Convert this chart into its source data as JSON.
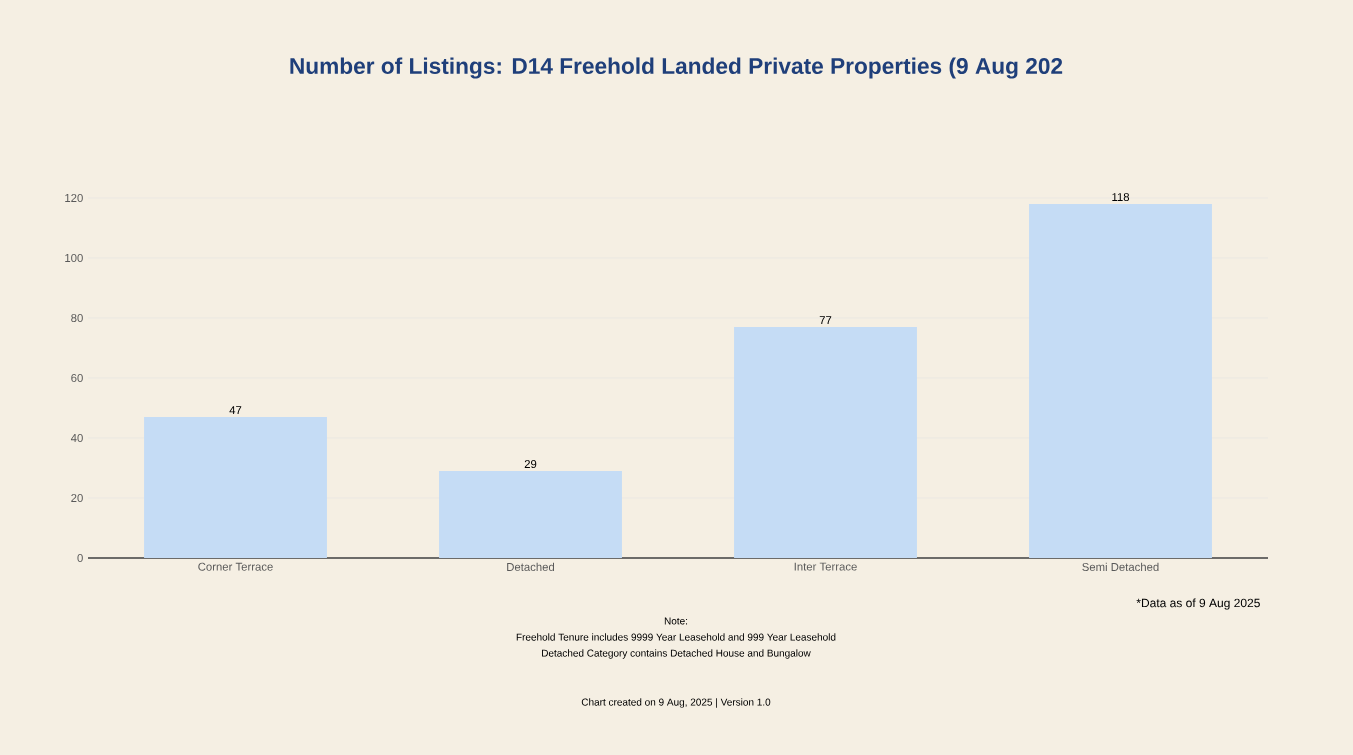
{
  "chart_data": {
    "type": "bar",
    "title": "Number of Listings: D14 Freehold Landed Private Properties (9 Aug 202",
    "categories": [
      "Corner Terrace",
      "Detached",
      "Inter Terrace",
      "Semi Detached"
    ],
    "values": [
      47,
      29,
      77,
      118
    ],
    "color": "#c5dcf5",
    "ylim": [
      0,
      120
    ],
    "yticks": [
      0,
      20,
      40,
      60,
      80,
      100,
      120
    ],
    "grid": "y",
    "data_labels": true,
    "annotations": [
      "*Data as of 9 Aug 2025",
      "Note:",
      "Freehold Tenure includes 9999 Year Leasehold and 999 Year Leasehold",
      "Detached Category contains Detached House and Bungalow",
      "Chart created on 9 Aug, 2025 | Version 1.0"
    ]
  }
}
